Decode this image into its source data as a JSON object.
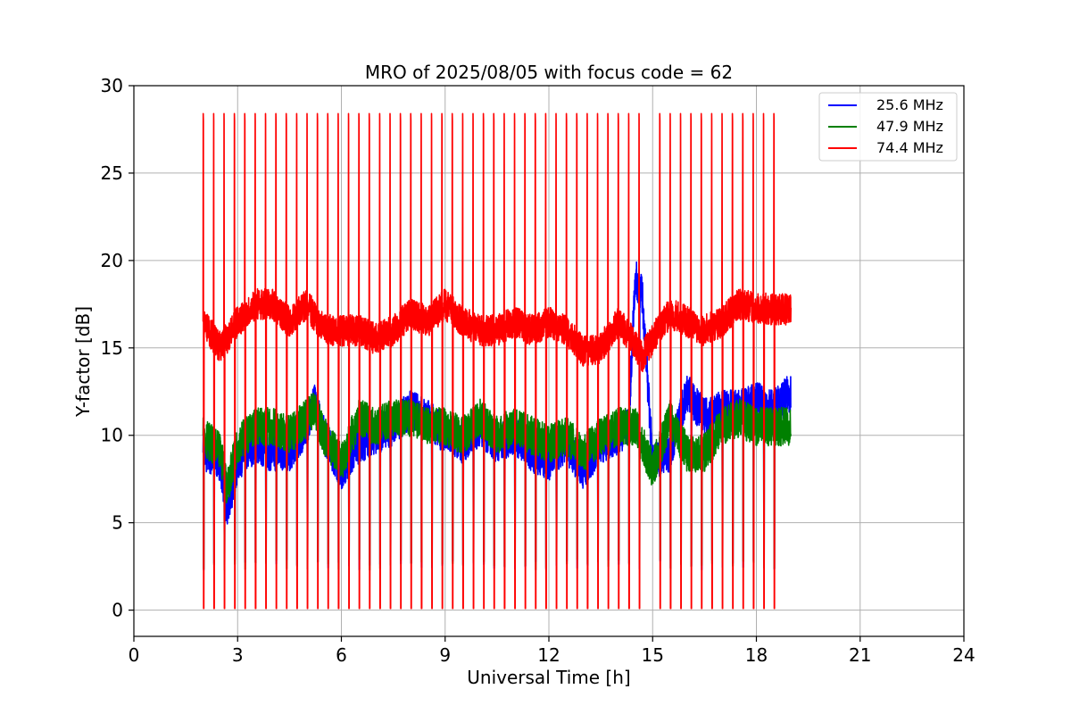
{
  "chart_data": {
    "type": "line",
    "title": "MRO of 2025/08/05 with focus code = 62",
    "xlabel": "Universal Time [h]",
    "ylabel": "Y-factor [dB]",
    "xlim": [
      0,
      24
    ],
    "ylim": [
      -1.5,
      30
    ],
    "xticks": [
      0,
      3,
      6,
      9,
      12,
      15,
      18,
      21,
      24
    ],
    "yticks": [
      0,
      5,
      10,
      15,
      20,
      25,
      30
    ],
    "xtick_labels": [
      "0",
      "3",
      "6",
      "9",
      "12",
      "15",
      "18",
      "21",
      "24"
    ],
    "ytick_labels": [
      "0",
      "5",
      "10",
      "15",
      "20",
      "25",
      "30"
    ],
    "grid": true,
    "legend_position": "top-right",
    "calibration_pulses": {
      "start_hour": 2.0,
      "end_hour": 18.75,
      "period_hours": 0.3,
      "gap": [
        14.7,
        15.0
      ],
      "peak_db": 28.4,
      "trough_db": 0.1
    },
    "series": [
      {
        "name": "25.6 MHz",
        "color": "#0000ff",
        "x": [
          2.0,
          2.5,
          2.7,
          3.0,
          3.5,
          4.0,
          4.5,
          5.0,
          5.2,
          5.5,
          6.0,
          6.5,
          7.0,
          7.5,
          8.0,
          8.5,
          9.0,
          9.5,
          10.0,
          10.5,
          11.0,
          11.5,
          12.0,
          12.5,
          13.0,
          13.5,
          14.0,
          14.3,
          14.5,
          14.7,
          15.0,
          15.5,
          16.0,
          16.5,
          17.0,
          17.5,
          18.0,
          18.5,
          19.0
        ],
        "y": [
          9.0,
          8.5,
          5.5,
          8.5,
          9.5,
          9.0,
          9.0,
          10.5,
          12.0,
          10.0,
          8.0,
          9.5,
          10.0,
          10.5,
          11.5,
          11.0,
          10.0,
          9.5,
          10.5,
          9.5,
          10.0,
          9.0,
          8.5,
          9.5,
          8.0,
          9.5,
          10.0,
          10.5,
          19.0,
          18.0,
          8.5,
          9.0,
          12.5,
          11.0,
          11.5,
          11.5,
          12.0,
          11.5,
          12.5
        ]
      },
      {
        "name": "47.9 MHz",
        "color": "#008000",
        "x": [
          2.0,
          2.5,
          2.7,
          3.0,
          3.5,
          4.0,
          4.5,
          5.0,
          5.2,
          5.5,
          6.0,
          6.5,
          7.0,
          7.5,
          8.0,
          8.5,
          9.0,
          9.5,
          10.0,
          10.5,
          11.0,
          11.5,
          12.0,
          12.5,
          13.0,
          13.5,
          14.0,
          14.5,
          14.7,
          15.0,
          15.5,
          16.0,
          16.5,
          17.0,
          17.5,
          18.0,
          18.5,
          19.0
        ],
        "y": [
          10.0,
          9.0,
          7.0,
          9.5,
          10.5,
          10.5,
          10.0,
          11.0,
          11.5,
          10.0,
          8.5,
          11.0,
          10.5,
          11.0,
          11.0,
          10.5,
          10.5,
          10.0,
          11.0,
          10.0,
          10.5,
          10.0,
          9.5,
          10.0,
          9.0,
          10.0,
          10.5,
          10.5,
          9.5,
          8.0,
          11.0,
          9.0,
          9.0,
          10.5,
          11.0,
          10.5,
          10.5,
          10.5
        ]
      },
      {
        "name": "74.4 MHz",
        "color": "#ff0000",
        "x": [
          2.0,
          2.5,
          3.0,
          3.5,
          4.0,
          4.5,
          5.0,
          5.5,
          6.0,
          6.5,
          7.0,
          7.5,
          8.0,
          8.5,
          9.0,
          9.5,
          10.0,
          10.5,
          11.0,
          11.5,
          12.0,
          12.5,
          13.0,
          13.5,
          14.0,
          14.5,
          14.7,
          15.0,
          15.5,
          16.0,
          16.5,
          17.0,
          17.5,
          18.0,
          18.5,
          19.0
        ],
        "y": [
          16.5,
          15.0,
          16.5,
          17.5,
          17.5,
          16.5,
          17.5,
          16.0,
          16.0,
          16.0,
          15.5,
          16.0,
          17.0,
          16.5,
          17.5,
          16.5,
          16.0,
          16.0,
          16.5,
          16.0,
          16.5,
          16.0,
          14.8,
          15.0,
          16.5,
          15.2,
          14.5,
          15.5,
          17.0,
          16.5,
          16.0,
          16.5,
          17.5,
          17.3,
          17.2,
          17.2
        ]
      }
    ]
  }
}
